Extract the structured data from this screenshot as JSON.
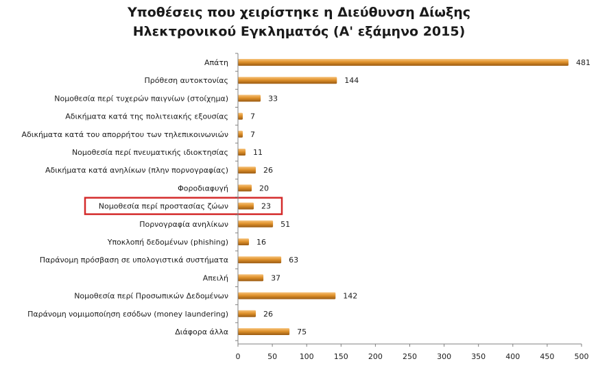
{
  "chart_data": {
    "type": "bar",
    "orientation": "horizontal",
    "title_lines": [
      "Υποθέσεις που χειρίστηκε η Διεύθυνση Δίωξης",
      "Ηλεκτρονικού Εγκληματός (Α' εξάμηνο 2015)"
    ],
    "categories": [
      "Απάτη",
      "Πρόθεση αυτοκτονίας",
      "Νομοθεσία περί τυχερών παιγνίων (στοίχημα)",
      "Αδικήματα κατά της πολιτειακής εξουσίας",
      "Αδικήματα κατά του απορρήτου των τηλεπικοινωνιών",
      "Νομοθεσία περί πνευματικής ιδιοκτησίας",
      "Αδικήματα κατά ανηλίκων (πλην πορνογραφίας)",
      "Φοροδιαφυγή",
      "Νομοθεσία περί προστασίας ζώων",
      "Πορνογραφία ανηλίκων",
      "Υποκλοπή δεδομένων (phishing)",
      "Παράνομη πρόσβαση σε υπολογιστικά συστήματα",
      "Απειλή",
      "Νομοθεσία περί Προσωπικών Δεδομένων",
      "Παράνομη νομιμοποίηση εσόδων (money laundering)",
      "Διάφορα άλλα"
    ],
    "values": [
      481,
      144,
      33,
      7,
      7,
      11,
      26,
      20,
      23,
      51,
      16,
      63,
      37,
      142,
      26,
      75
    ],
    "xlim": [
      0,
      500
    ],
    "xticks": [
      0,
      50,
      100,
      150,
      200,
      250,
      300,
      350,
      400,
      450,
      500
    ],
    "highlighted_category_index": 8,
    "bar_color": "#e0922c",
    "bar_color_dark": "#9a5a12",
    "bar_color_light": "#f6c27a",
    "highlight_color": "#d42a2a",
    "axis_color": "#7f7f7f",
    "grid": false,
    "legend": "none"
  }
}
